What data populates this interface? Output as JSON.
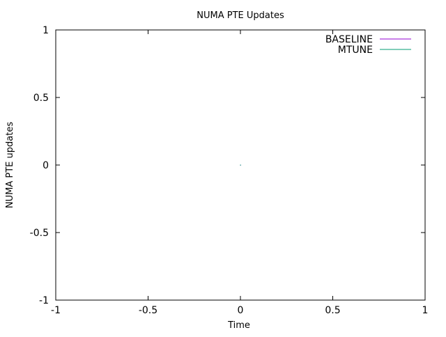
{
  "chart_data": {
    "type": "line",
    "title": "NUMA PTE Updates",
    "xlabel": "Time",
    "ylabel": "NUMA PTE updates",
    "xlim": [
      -1,
      1
    ],
    "ylim": [
      -1,
      1
    ],
    "xticks": [
      "-1",
      "-0.5",
      "0",
      "0.5",
      "1"
    ],
    "yticks": [
      "-1",
      "-0.5",
      "0",
      "0.5",
      "1"
    ],
    "grid": false,
    "legend_position": "top-right",
    "series": [
      {
        "name": "BASELINE",
        "color": "#9400d3",
        "points": [
          [
            0,
            0
          ]
        ]
      },
      {
        "name": "MTUNE",
        "color": "#009e73",
        "points": [
          [
            0,
            0
          ]
        ]
      }
    ]
  }
}
